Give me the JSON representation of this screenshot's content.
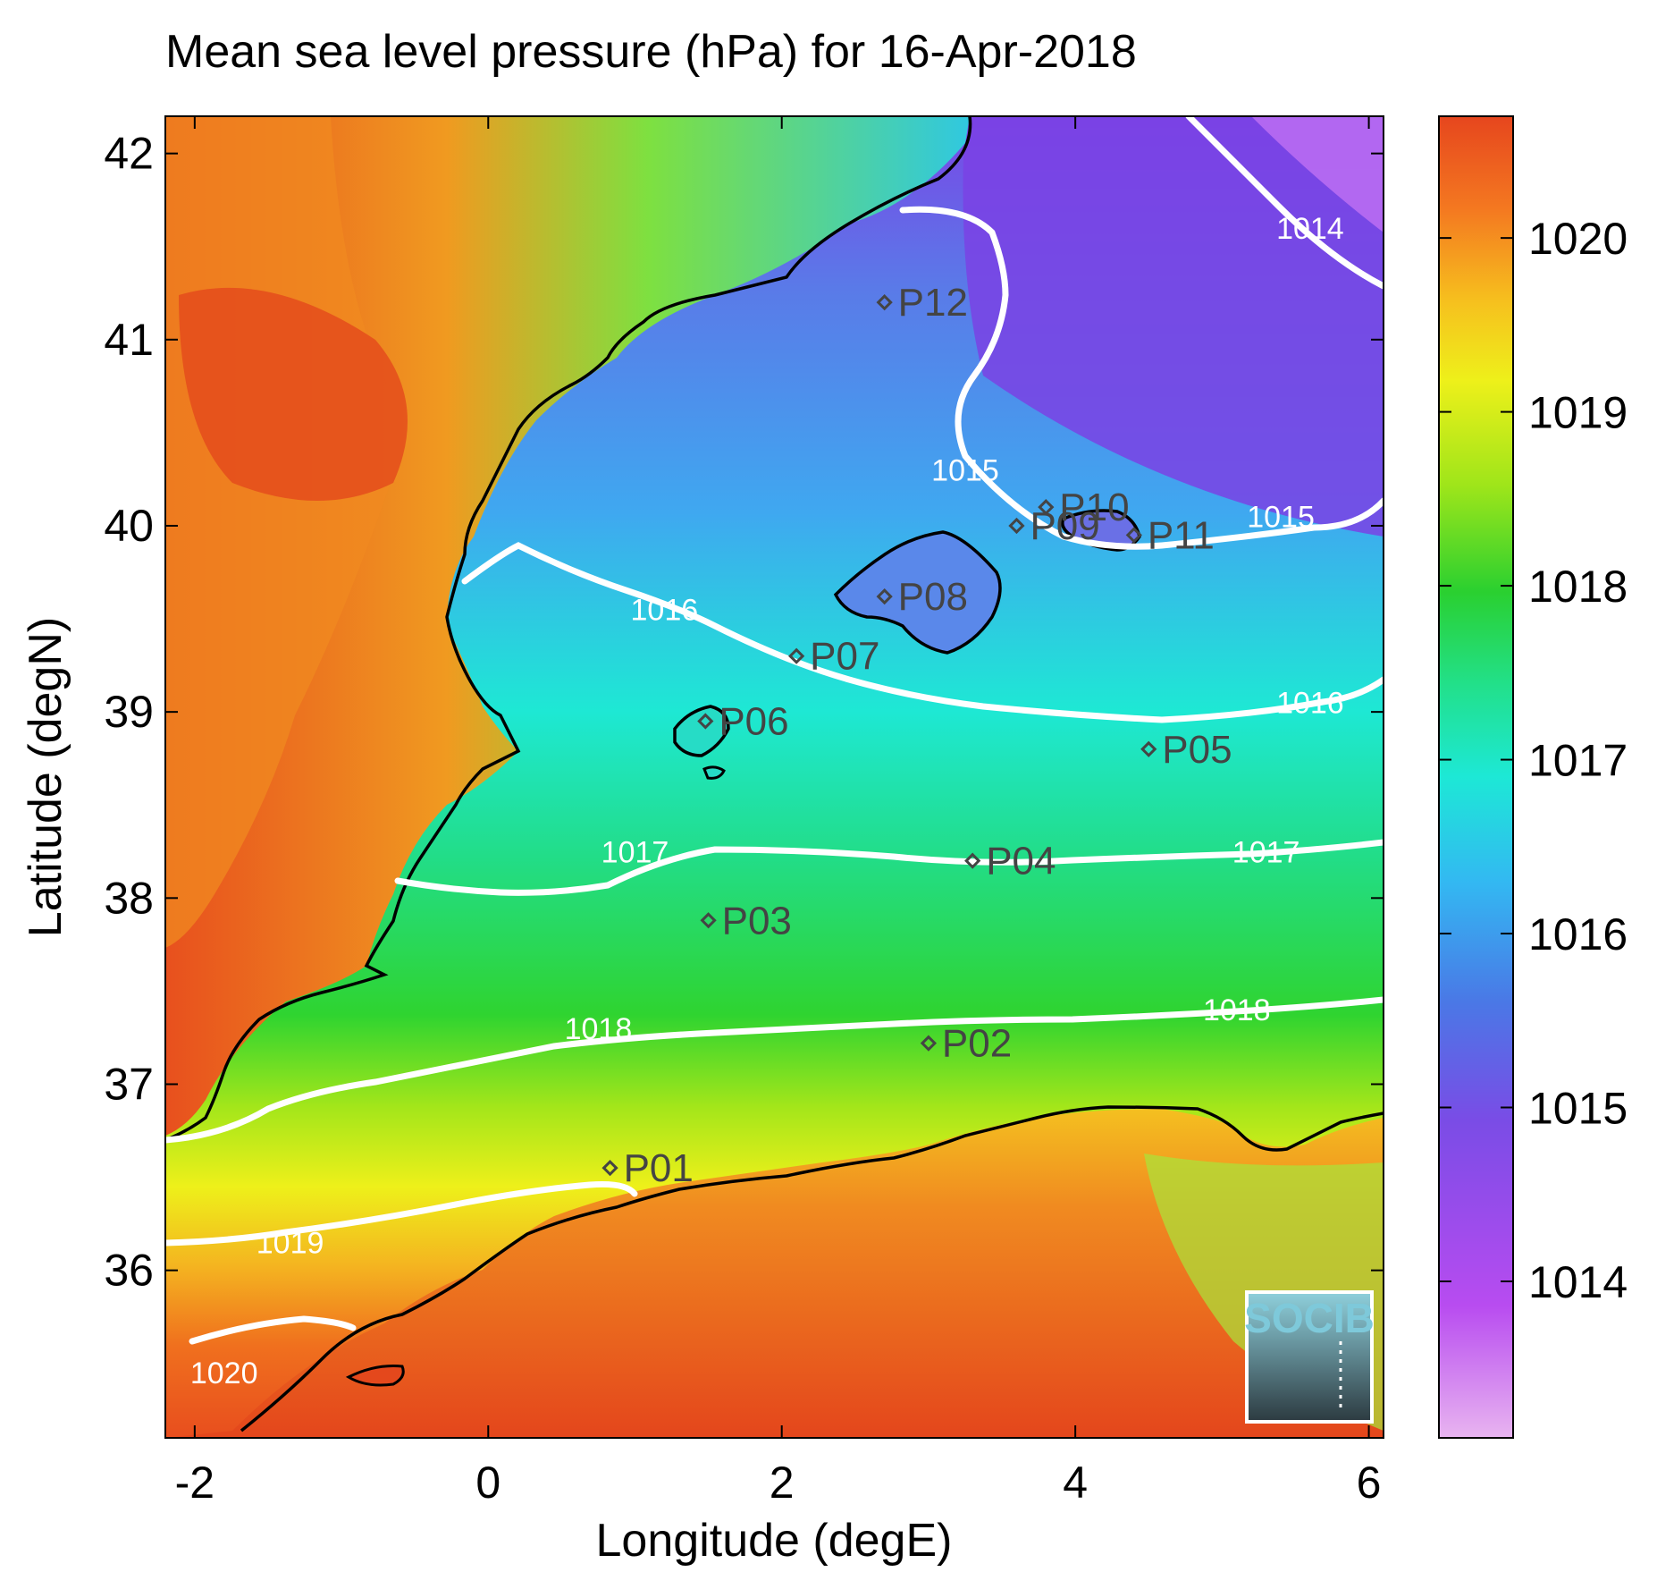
{
  "title": "Mean sea level pressure (hPa) for 16-Apr-2018",
  "x_axis": {
    "label": "Longitude (degE)",
    "range": [
      -2.2,
      6.1
    ],
    "ticks": [
      "-2",
      "0",
      "2",
      "4",
      "6"
    ],
    "tick_values": [
      -2,
      0,
      2,
      4,
      6
    ]
  },
  "y_axis": {
    "label": "Latitude (degN)",
    "range": [
      35.1,
      42.2
    ],
    "ticks": [
      "36",
      "37",
      "38",
      "39",
      "40",
      "41",
      "42"
    ],
    "tick_values": [
      36,
      37,
      38,
      39,
      40,
      41,
      42
    ]
  },
  "colorbar": {
    "range": [
      1013.1,
      1020.7
    ],
    "ticks": [
      "1014",
      "1015",
      "1016",
      "1017",
      "1018",
      "1019",
      "1020"
    ],
    "tick_values": [
      1014,
      1015,
      1016,
      1017,
      1018,
      1019,
      1020
    ],
    "colors": [
      "#e8b4f0",
      "#b84cf0",
      "#7a4ce6",
      "#4a78e6",
      "#33b8f2",
      "#1de8d6",
      "#22e08a",
      "#2ad030",
      "#9ee51a",
      "#eef01a",
      "#f6c01e",
      "#f47820",
      "#e6461e"
    ]
  },
  "stations": [
    {
      "name": "P01",
      "lon": 0.83,
      "lat": 36.55
    },
    {
      "name": "P02",
      "lon": 3.0,
      "lat": 37.22
    },
    {
      "name": "P03",
      "lon": 1.5,
      "lat": 37.88
    },
    {
      "name": "P04",
      "lon": 3.3,
      "lat": 38.2
    },
    {
      "name": "P05",
      "lon": 4.5,
      "lat": 38.8
    },
    {
      "name": "P06",
      "lon": 1.48,
      "lat": 38.95
    },
    {
      "name": "P07",
      "lon": 2.1,
      "lat": 39.3
    },
    {
      "name": "P08",
      "lon": 2.7,
      "lat": 39.62
    },
    {
      "name": "P09",
      "lon": 3.6,
      "lat": 40.0
    },
    {
      "name": "P10",
      "lon": 3.8,
      "lat": 40.1
    },
    {
      "name": "P11",
      "lon": 4.4,
      "lat": 39.95
    },
    {
      "name": "P12",
      "lon": 2.7,
      "lat": 41.2
    }
  ],
  "contour_labels": [
    {
      "text": "1014",
      "lon": 5.6,
      "lat": 41.6
    },
    {
      "text": "1015",
      "lon": 3.25,
      "lat": 40.3
    },
    {
      "text": "1015",
      "lon": 5.4,
      "lat": 40.05
    },
    {
      "text": "1016",
      "lon": 1.2,
      "lat": 39.55
    },
    {
      "text": "1016",
      "lon": 5.6,
      "lat": 39.05
    },
    {
      "text": "1017",
      "lon": 1.0,
      "lat": 38.25
    },
    {
      "text": "1017",
      "lon": 5.3,
      "lat": 38.25
    },
    {
      "text": "1018",
      "lon": 0.75,
      "lat": 37.3
    },
    {
      "text": "1018",
      "lon": 5.1,
      "lat": 37.4
    },
    {
      "text": "1019",
      "lon": -1.35,
      "lat": 36.15
    },
    {
      "text": "1020",
      "lon": -1.8,
      "lat": 35.45
    }
  ],
  "logo": {
    "text": "SOCIB"
  }
}
